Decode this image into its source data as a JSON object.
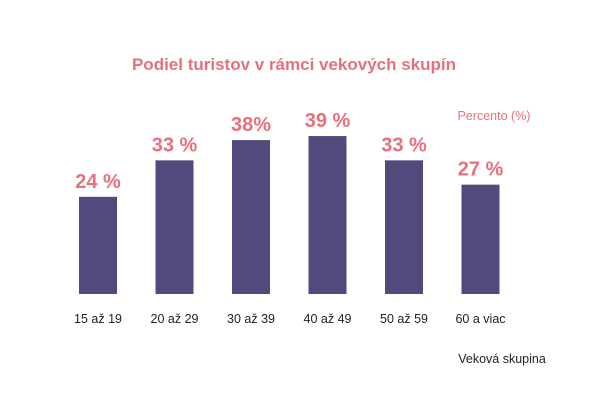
{
  "chart_data": {
    "type": "bar",
    "title": "Podiel turistov v rámci vekových skupín",
    "unit_label": "Percento (%)",
    "xlabel": "Veková skupina",
    "ylabel": "",
    "categories": [
      "15 až 19",
      "20 až 29",
      "30 až 39",
      "40 až 49",
      "50 až 59",
      "60 a viac"
    ],
    "values": [
      24,
      33,
      38,
      39,
      33,
      27
    ],
    "data_labels": [
      "24 %",
      "33 %",
      "38%",
      "39 %",
      "33 %",
      "27 %"
    ],
    "ylim": [
      0,
      60
    ],
    "grid": false,
    "legend": "none",
    "colors": {
      "bar": "#524a7c",
      "accent": "#e8707a",
      "text": "#222222"
    }
  }
}
